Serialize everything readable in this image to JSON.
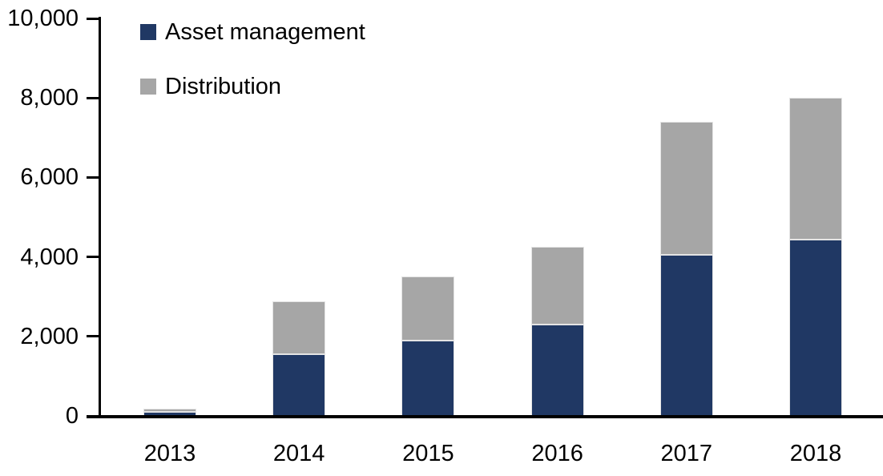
{
  "chart_data": {
    "type": "bar",
    "stacked": true,
    "title": "",
    "xlabel": "",
    "ylabel": "",
    "categories": [
      "2013",
      "2014",
      "2015",
      "2016",
      "2017",
      "2018"
    ],
    "series": [
      {
        "name": "Asset management",
        "color": "#203864",
        "values": [
          100,
          1550,
          1900,
          2300,
          4050,
          4430
        ]
      },
      {
        "name": "Distribution",
        "color": "#A6A6A6",
        "values": [
          90,
          1330,
          1600,
          1950,
          3350,
          3570
        ]
      }
    ],
    "totals": [
      190,
      2880,
      3500,
      4250,
      7400,
      8000
    ],
    "ylim": [
      0,
      10000
    ],
    "yticks": [
      0,
      2000,
      4000,
      6000,
      8000,
      10000
    ],
    "ytick_labels": [
      "0",
      "2,000",
      "4,000",
      "6,000",
      "8,000",
      "10,000"
    ],
    "legend_position": "top-left",
    "grid": false
  },
  "legend": {
    "items": [
      {
        "label": "Asset management",
        "color": "#203864"
      },
      {
        "label": "Distribution",
        "color": "#A6A6A6"
      }
    ]
  },
  "colors": {
    "axis": "#000000",
    "background": "#ffffff",
    "asset_management": "#203864",
    "distribution": "#A6A6A6"
  }
}
